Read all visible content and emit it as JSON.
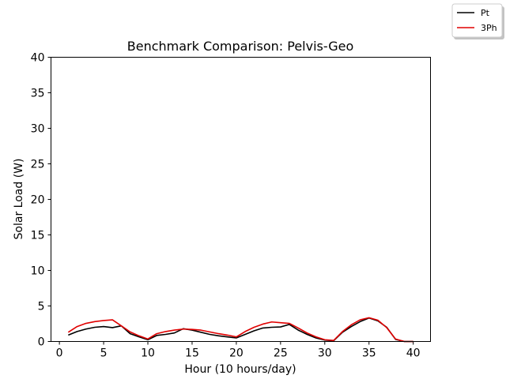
{
  "chart_data": {
    "type": "line",
    "title": "Benchmark Comparison: Pelvis-Geo",
    "xlabel": "Hour (10 hours/day)",
    "ylabel": "Solar Load (W)",
    "xlim": [
      -0.95,
      41.95
    ],
    "ylim": [
      0,
      40
    ],
    "xticks": [
      0,
      5,
      10,
      15,
      20,
      25,
      30,
      35,
      40
    ],
    "yticks": [
      0,
      5,
      10,
      15,
      20,
      25,
      30,
      35,
      40
    ],
    "grid": false,
    "legend_position": "top-right (outside plot)",
    "x": [
      1,
      2,
      3,
      4,
      5,
      6,
      7,
      8,
      9,
      10,
      11,
      12,
      13,
      14,
      15,
      16,
      17,
      18,
      19,
      20,
      21,
      22,
      23,
      24,
      25,
      26,
      27,
      28,
      29,
      30,
      31,
      32,
      33,
      34,
      35,
      36,
      37,
      38,
      39,
      40
    ],
    "series": [
      {
        "name": "Pt",
        "color": "#000000",
        "values": [
          0.9,
          1.4,
          1.75,
          2.0,
          2.1,
          1.95,
          2.2,
          1.1,
          0.65,
          0.25,
          0.85,
          1.0,
          1.2,
          1.8,
          1.6,
          1.3,
          1.0,
          0.8,
          0.65,
          0.5,
          1.0,
          1.5,
          1.9,
          2.0,
          2.05,
          2.4,
          1.6,
          1.0,
          0.5,
          0.2,
          0.1,
          1.3,
          2.1,
          2.8,
          3.3,
          2.9,
          2.0,
          0.3,
          0.0,
          0.0
        ]
      },
      {
        "name": "3Ph",
        "color": "#e00000",
        "values": [
          1.3,
          2.1,
          2.55,
          2.8,
          2.95,
          3.05,
          2.2,
          1.35,
          0.8,
          0.35,
          1.1,
          1.4,
          1.6,
          1.75,
          1.7,
          1.6,
          1.35,
          1.1,
          0.9,
          0.65,
          1.4,
          2.0,
          2.45,
          2.75,
          2.65,
          2.55,
          1.9,
          1.2,
          0.65,
          0.25,
          0.15,
          1.4,
          2.35,
          3.05,
          3.35,
          3.0,
          1.95,
          0.35,
          0.0,
          0.0
        ]
      }
    ]
  }
}
